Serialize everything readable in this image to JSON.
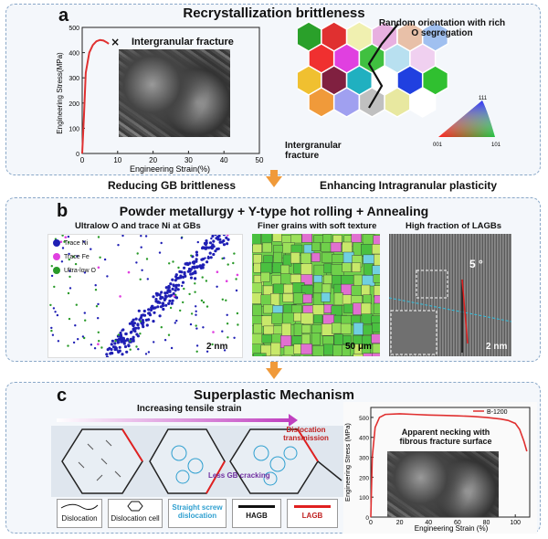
{
  "panel_a": {
    "label": "a",
    "title": "Recrystallization brittleness",
    "inset_label": "Intergranular fracture",
    "xlabel": "Engineering Strain(%)",
    "ylabel": "Engineering Stress(MPa)",
    "xticks": [
      "0",
      "10",
      "20",
      "30",
      "40",
      "50"
    ],
    "yticks": [
      "0",
      "100",
      "200",
      "300",
      "400",
      "500"
    ],
    "fracture_mark": "×",
    "random_orientation": "Random orientation with rich O segregation",
    "intergranular": "Intergranular fracture",
    "ipf": {
      "top": "111",
      "left": "001",
      "right": "101"
    },
    "curve": {
      "x": [
        0,
        0.5,
        1,
        2,
        3,
        4,
        5,
        6,
        7,
        7.5
      ],
      "y": [
        0,
        150,
        320,
        400,
        430,
        445,
        450,
        448,
        440,
        435
      ]
    }
  },
  "transition": {
    "left": "Reducing GB brittleness",
    "right": "Enhancing Intragranular plasticity"
  },
  "panel_b": {
    "label": "b",
    "title": "Powder metallurgy + Y-type hot rolling + Annealing",
    "sub1": "Ultralow O and trace Ni  at GBs",
    "sub2": "Finer grains with soft texture",
    "sub3": "High fraction of LAGBs",
    "legend": [
      "Trace Ni",
      "Trace Fe",
      "Ultra-low O"
    ],
    "legend_colors": [
      "#1f1fb4",
      "#e040e0",
      "#2a9a2a"
    ],
    "scale1": "2 nm",
    "scale2": "50 μm",
    "scale3": "2 nm",
    "angle": "5 °"
  },
  "panel_c": {
    "label": "c",
    "title": "Superplastic Mechanism",
    "strain_label": "Increasing tensile strain",
    "dislocation_transmission": "Dislocation transmission",
    "less_gb": "Less GB cracking",
    "legend": [
      "Dislocation",
      "Dislocation cell",
      "Straight screw dislocation",
      "HAGB",
      "LAGB"
    ],
    "inset": "Apparent necking with fibrous fracture surface",
    "series_name": "B-1200",
    "xlabel": "Engineering Strain (%)",
    "ylabel": "Engineering Stress (MPa)",
    "xticks": [
      "0",
      "20",
      "40",
      "60",
      "80",
      "100"
    ],
    "yticks": [
      "0",
      "100",
      "200",
      "300",
      "400",
      "500"
    ],
    "curve": {
      "x": [
        0,
        1,
        3,
        6,
        10,
        20,
        30,
        40,
        50,
        60,
        70,
        80,
        90,
        95,
        100,
        103,
        106,
        108
      ],
      "y": [
        0,
        300,
        450,
        500,
        515,
        518,
        515,
        512,
        510,
        508,
        505,
        500,
        492,
        485,
        470,
        440,
        380,
        330
      ]
    }
  },
  "colors": {
    "accent": "#f09a3a",
    "curve": "#e03030",
    "panel_border": "#8aa8c8"
  }
}
